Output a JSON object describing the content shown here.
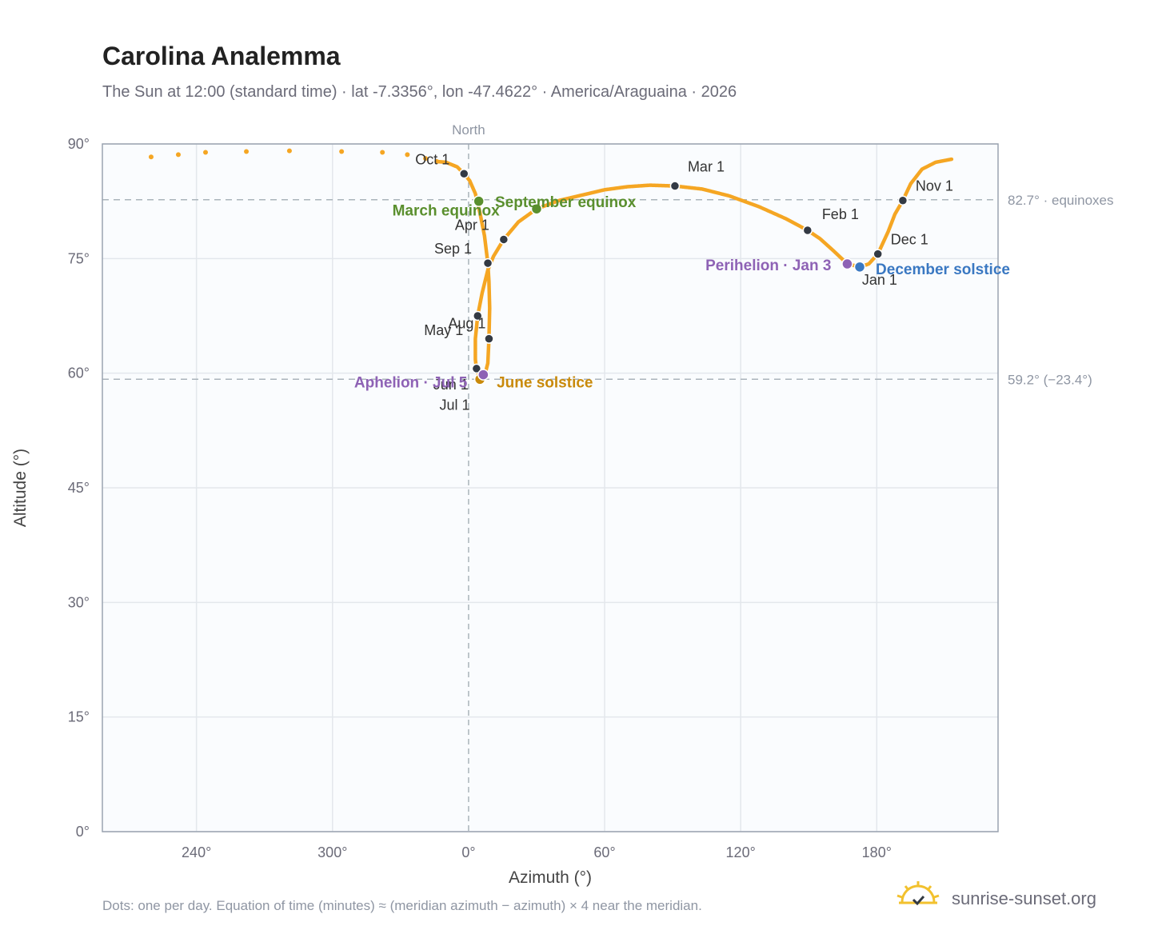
{
  "header": {
    "title": "Carolina Analemma",
    "subtitle": "The Sun at 12:00 (standard time) · lat -7.3356°, lon -47.4622° · America/Araguaina · 2026"
  },
  "footer": {
    "note": "Dots: one per day. Equation of time (minutes) ≈ (meridian azimuth − azimuth) × 4 near the meridian.",
    "brand": "sunrise-sunset.org",
    "brand_icon": "sun-check-icon"
  },
  "colors": {
    "curve": "#f5a623",
    "month_marker": "#333a44",
    "equinox": "#5a8f2e",
    "june_solstice": "#c98a0b",
    "december_solstice": "#3a78c2",
    "apsis": "#8e62b5",
    "grid": "#e3e7ec",
    "frame": "#9aa3b0",
    "reference_line": "#aab4bb",
    "plot_background": "#fafcfe"
  },
  "chart_data": {
    "type": "scatter",
    "xlabel": "Azimuth (°)",
    "ylabel": "Altitude (°)",
    "x_ticks": [
      "240°",
      "300°",
      "0°",
      "60°",
      "120°",
      "180°"
    ],
    "y_ticks": [
      "0°",
      "15°",
      "30°",
      "45°",
      "60°",
      "75°",
      "90°"
    ],
    "ylim": [
      0,
      90
    ],
    "x_note": "North",
    "grid": true,
    "reference_lines": [
      {
        "altitude": 82.7,
        "label": "82.7° · equinoxes"
      },
      {
        "altitude": 59.2,
        "label": "59.2° (−23.4°)"
      }
    ],
    "months": [
      {
        "label": "Jan 1",
        "azimuth": 172.8,
        "altitude": 73.9
      },
      {
        "label": "Feb 1",
        "azimuth": 149.5,
        "altitude": 78.7
      },
      {
        "label": "Mar 1",
        "azimuth": 91.0,
        "altitude": 84.5
      },
      {
        "label": "Apr 1",
        "azimuth": 15.5,
        "altitude": 77.5
      },
      {
        "label": "May 1",
        "azimuth": 4.0,
        "altitude": 67.5
      },
      {
        "label": "Jun 1",
        "azimuth": 3.5,
        "altitude": 60.6
      },
      {
        "label": "Jul 1",
        "azimuth": 5.5,
        "altitude": 59.1
      },
      {
        "label": "Aug 1",
        "azimuth": 9.0,
        "altitude": 64.5
      },
      {
        "label": "Sep 1",
        "azimuth": 8.5,
        "altitude": 74.4
      },
      {
        "label": "Oct 1",
        "azimuth": -2.0,
        "altitude": 86.1
      },
      {
        "label": "Nov 1",
        "azimuth": 191.5,
        "altitude": 82.6
      },
      {
        "label": "Dec 1",
        "azimuth": 180.5,
        "altitude": 75.6
      }
    ],
    "events": [
      {
        "label": "March equinox",
        "azimuth": 4.5,
        "altitude": 82.5,
        "color": "#5a8f2e"
      },
      {
        "label": "September equinox",
        "azimuth": 30.0,
        "altitude": 81.5,
        "color": "#5a8f2e"
      },
      {
        "label": "June solstice",
        "azimuth": 5.0,
        "altitude": 59.2,
        "color": "#c98a0b"
      },
      {
        "label": "December solstice",
        "azimuth": 172.5,
        "altitude": 73.9,
        "color": "#3a78c2"
      },
      {
        "label": "Perihelion · Jan 3",
        "azimuth": 167.0,
        "altitude": 74.3,
        "color": "#8e62b5"
      },
      {
        "label": "Aphelion · Jul 5",
        "azimuth": 6.5,
        "altitude": 59.8,
        "color": "#8e62b5"
      }
    ],
    "path_daily_dots": [
      [
        -140,
        88.3
      ],
      [
        -128,
        88.6
      ],
      [
        -116,
        88.9
      ],
      [
        -98,
        89.0
      ],
      [
        -79,
        89.1
      ],
      [
        -56,
        89.0
      ],
      [
        -38,
        88.9
      ],
      [
        -27,
        88.6
      ],
      [
        -19,
        88.1
      ],
      [
        -14,
        87.7
      ]
    ],
    "path_curve": [
      [
        172.8,
        73.9
      ],
      [
        168.5,
        74.2
      ],
      [
        166,
        74.6
      ],
      [
        161,
        76.0
      ],
      [
        155,
        77.6
      ],
      [
        149.5,
        78.7
      ],
      [
        140,
        80.2
      ],
      [
        128,
        81.8
      ],
      [
        115,
        83.2
      ],
      [
        103,
        84.1
      ],
      [
        91,
        84.5
      ],
      [
        80,
        84.6
      ],
      [
        70,
        84.4
      ],
      [
        60,
        84.0
      ],
      [
        50,
        83.3
      ],
      [
        40,
        82.6
      ],
      [
        30,
        81.5
      ],
      [
        22,
        79.8
      ],
      [
        15.5,
        77.5
      ],
      [
        11,
        75.3
      ],
      [
        8.5,
        73.5
      ],
      [
        6,
        70.5
      ],
      [
        4,
        67.5
      ],
      [
        3,
        64.5
      ],
      [
        3,
        61.8
      ],
      [
        3.5,
        60.6
      ],
      [
        4.5,
        59.6
      ],
      [
        5.5,
        59.1
      ],
      [
        7,
        59.6
      ],
      [
        8.5,
        61.3
      ],
      [
        9,
        64.5
      ],
      [
        9.3,
        68.5
      ],
      [
        9,
        72.0
      ],
      [
        8.5,
        74.4
      ],
      [
        7,
        78.0
      ],
      [
        5,
        81.0
      ],
      [
        3,
        83.5
      ],
      [
        0.5,
        85.2
      ],
      [
        -2,
        86.1
      ],
      [
        -5,
        87.0
      ],
      [
        -10,
        87.6
      ],
      [
        -14,
        87.7
      ]
    ],
    "path_curve_east": [
      [
        172.8,
        73.9
      ],
      [
        176.5,
        74.3
      ],
      [
        180.5,
        75.6
      ],
      [
        185,
        78.5
      ],
      [
        188,
        80.8
      ],
      [
        191.5,
        82.6
      ],
      [
        195,
        84.8
      ],
      [
        200,
        86.7
      ],
      [
        206,
        87.6
      ],
      [
        213,
        88.0
      ]
    ]
  }
}
